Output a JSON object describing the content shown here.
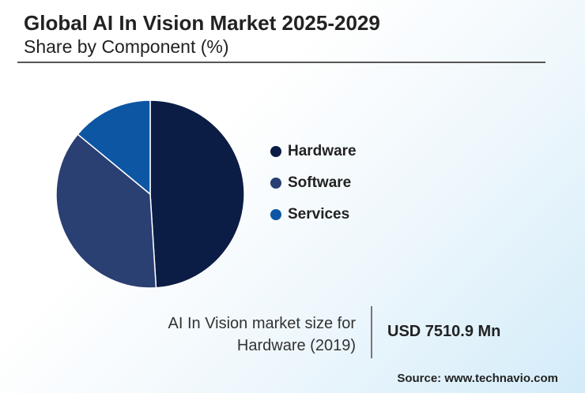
{
  "header": {
    "title": "Global AI In Vision Market 2025-2029",
    "subtitle": "Share by Component (%)"
  },
  "chart_data": {
    "type": "pie",
    "categories": [
      "Hardware",
      "Software",
      "Services"
    ],
    "values": [
      49,
      37,
      14
    ],
    "colors": [
      "#0b1d45",
      "#2a3f72",
      "#0c56a4"
    ],
    "legend": "right"
  },
  "callout": {
    "caption_line1": "AI In Vision market size for",
    "caption_line2": "Hardware (2019)",
    "value": "USD 7510.9 Mn"
  },
  "footer": {
    "source": "Source: www.technavio.com"
  }
}
